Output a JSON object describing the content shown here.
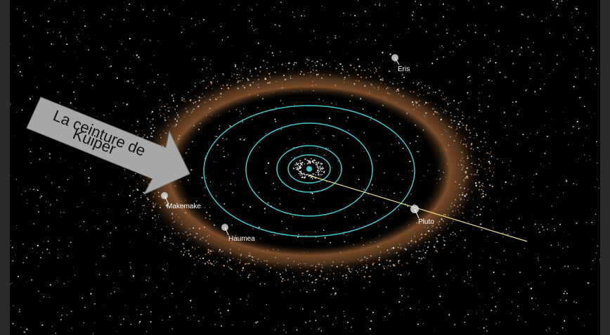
{
  "scene": {
    "callout": {
      "line1": "La ceinture de",
      "line2": "Kuiper"
    },
    "objects": [
      {
        "id": "eris",
        "label": "Eris"
      },
      {
        "id": "makemake",
        "label": "Makemake"
      },
      {
        "id": "haumea",
        "label": "Haumea"
      },
      {
        "id": "pluto",
        "label": "Pluto"
      }
    ],
    "colors": {
      "orbit": "#3fc7c9",
      "belt": "#d98a4b",
      "trajectory": "#e8e08a",
      "callout_fill": "#a7a7a7",
      "background": "#000000",
      "frame": "#2b2b2b"
    }
  }
}
